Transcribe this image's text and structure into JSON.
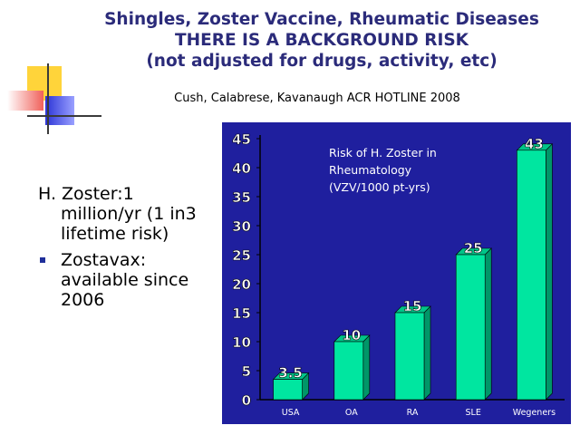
{
  "slide": {
    "title_lines": [
      "Shingles, Zoster Vaccine, Rheumatic Diseases",
      "THERE IS A BACKGROUND RISK",
      "(not adjusted for drugs, activity, etc)"
    ],
    "citation": "Cush, Calabrese, Kavanaugh ACR HOTLINE 2008",
    "body": {
      "line1": "H. Zoster:1",
      "rest": "million/yr (1 in3 lifetime risk)",
      "bullet": "Zostavax: available since 2006"
    },
    "colors": {
      "title": "#2b2b7a",
      "chart_background": "#1f1f9e",
      "bar": "#00e6a0",
      "bullet": "#1f2f9a"
    }
  },
  "chart_data": {
    "type": "bar",
    "categories": [
      "USA",
      "OA",
      "RA",
      "SLE",
      "Wegeners"
    ],
    "values": [
      3.5,
      10,
      15,
      25,
      43
    ],
    "data_labels": [
      "3.5",
      "10",
      "15",
      "25",
      "43"
    ],
    "ylim": [
      0,
      45
    ],
    "yticks": [
      "0",
      "5",
      "10",
      "15",
      "20",
      "25",
      "30",
      "35",
      "40",
      "45"
    ],
    "annotation_lines": [
      "Risk of H. Zoster in",
      "Rheumatology",
      "(VZV/1000 pt-yrs)"
    ],
    "grid": false
  }
}
